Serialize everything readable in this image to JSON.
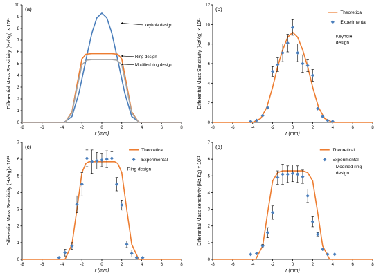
{
  "chart_data": [
    {
      "panel": "(a)",
      "type": "line",
      "ylabel": "Differential Mass Sensitivity (Hz/Kg) × 10¹¹",
      "xlabel": "r (mm)",
      "xlim": [
        -8,
        8
      ],
      "ylim": [
        0,
        10
      ],
      "xticks": [
        -8,
        -6,
        -4,
        -2,
        0,
        2,
        4,
        6,
        8
      ],
      "yticks": [
        0,
        1,
        2,
        3,
        4,
        5,
        6,
        7,
        8,
        9,
        10
      ],
      "grid": false,
      "series": [
        {
          "name": "keyhole design",
          "color": "#4a7ebb",
          "x": [
            -8,
            -3.8,
            -3,
            -2.3,
            -1.5,
            -1,
            -0.5,
            0,
            0.5,
            1,
            1.5,
            2.3,
            3,
            3.8,
            8
          ],
          "y": [
            0,
            0,
            0.5,
            2.5,
            5.7,
            7.6,
            8.9,
            9.3,
            8.9,
            7.6,
            5.7,
            2.5,
            0.5,
            0,
            0
          ]
        },
        {
          "name": "Ring design",
          "color": "#ed7d31",
          "x": [
            -8,
            -3.7,
            -3,
            -2.5,
            -2,
            -1.6,
            -1,
            0,
            1,
            1.6,
            2,
            2.5,
            3,
            3.7,
            8
          ],
          "y": [
            0,
            0,
            0.9,
            3.2,
            5.4,
            5.8,
            5.85,
            5.85,
            5.85,
            5.8,
            5.4,
            3.2,
            0.9,
            0,
            0
          ]
        },
        {
          "name": "Modified ring design",
          "color": "#a5a5a5",
          "x": [
            -8,
            -3.7,
            -3,
            -2.5,
            -2,
            -1.5,
            -1,
            0,
            1,
            1.5,
            2,
            2.5,
            3,
            3.7,
            8
          ],
          "y": [
            0,
            0,
            0.8,
            2.9,
            4.9,
            5.3,
            5.35,
            5.35,
            5.35,
            5.3,
            4.9,
            2.9,
            0.8,
            0,
            0
          ]
        }
      ],
      "annotations": [
        "keyhole design",
        "Ring design",
        "Modified ring design"
      ]
    },
    {
      "panel": "(b)",
      "type": "scatter",
      "ylabel": "Differential Mass Sensitivity (Hz/Kg) × 10¹¹",
      "xlabel": "r (mm)",
      "xlim": [
        -8,
        8
      ],
      "ylim": [
        0,
        12
      ],
      "xticks": [
        -8,
        -6,
        -4,
        -2,
        0,
        2,
        4,
        6,
        8
      ],
      "yticks": [
        0,
        2,
        4,
        6,
        8,
        10,
        12
      ],
      "legend": "top-right",
      "note": [
        "Keyhole",
        "design"
      ],
      "series": [
        {
          "name": "Theoretical",
          "color": "#ed7d31",
          "x": [
            -8,
            -4,
            -3.2,
            -2.6,
            -2,
            -1.5,
            -1,
            -0.5,
            0,
            0.5,
            1,
            1.5,
            2,
            2.6,
            3.2,
            4,
            8
          ],
          "y": [
            0,
            0,
            0.4,
            1.5,
            3.6,
            5.7,
            7.4,
            8.7,
            9.2,
            8.7,
            7.4,
            5.7,
            3.6,
            1.5,
            0.4,
            0,
            0
          ]
        },
        {
          "name": "Experimental",
          "color": "#4a7ebb",
          "x": [
            -4.2,
            -3.6,
            -3,
            -2.5,
            -2,
            -1.5,
            -1,
            -0.5,
            0,
            0.5,
            1,
            1.5,
            2,
            2.5,
            3,
            3.5,
            4
          ],
          "y": [
            0.1,
            0.2,
            0.7,
            1.5,
            5.2,
            5.9,
            7.1,
            8.1,
            9.7,
            7.1,
            6.0,
            5.8,
            4.8,
            1.4,
            0.6,
            0.2,
            0.1
          ],
          "err": [
            0,
            0,
            0,
            0,
            0.5,
            0.7,
            0.9,
            0.9,
            0.8,
            0.9,
            0.9,
            0.6,
            0.6,
            0,
            0,
            0,
            0
          ]
        }
      ]
    },
    {
      "panel": "(c)",
      "type": "scatter",
      "ylabel": "Differential Mass Sensitivity (Hz/Kg)× 10¹¹",
      "xlabel": "r (mm)",
      "xlim": [
        -8,
        8
      ],
      "ylim": [
        0,
        7
      ],
      "xticks": [
        -8,
        -6,
        -4,
        -2,
        0,
        2,
        4,
        6,
        8
      ],
      "yticks": [
        0,
        1,
        2,
        3,
        4,
        5,
        6,
        7
      ],
      "legend": "top-right",
      "note": [
        "Ring design"
      ],
      "series": [
        {
          "name": "Theoretical",
          "color": "#ed7d31",
          "x": [
            -8,
            -3.7,
            -3,
            -2.5,
            -2,
            -1.6,
            -1.3,
            0,
            1.3,
            1.6,
            2,
            2.5,
            3,
            3.7,
            8
          ],
          "y": [
            0,
            0,
            0.9,
            3.0,
            5.2,
            5.75,
            5.85,
            5.85,
            5.85,
            5.75,
            5.2,
            3.0,
            0.9,
            0,
            0
          ]
        },
        {
          "name": "Experimental",
          "color": "#4a7ebb",
          "x": [
            -4.3,
            -3.7,
            -3,
            -2.5,
            -2,
            -1.5,
            -1,
            -0.5,
            0,
            0.5,
            1,
            1.5,
            2,
            2.5,
            3,
            3.5,
            4.1
          ],
          "y": [
            0.1,
            0.4,
            0.8,
            3.3,
            4.5,
            6.05,
            5.85,
            5.9,
            5.95,
            6.0,
            6.05,
            4.5,
            3.25,
            0.9,
            0.35,
            0.1,
            0.1
          ],
          "err": [
            0,
            0.2,
            0.2,
            0.5,
            0.7,
            0.5,
            0.7,
            0.5,
            0.4,
            0.5,
            0.4,
            0.4,
            0.3,
            0.2,
            0.2,
            0,
            0
          ]
        }
      ]
    },
    {
      "panel": "(d)",
      "type": "scatter",
      "ylabel": "Differential Mass sensitivity (Hz/Kg) × 10¹¹",
      "xlabel": "r (mm)",
      "xlim": [
        -8,
        8
      ],
      "ylim": [
        0,
        7
      ],
      "xticks": [
        -8,
        -6,
        -4,
        -2,
        0,
        2,
        4,
        6,
        8
      ],
      "yticks": [
        0,
        1,
        2,
        3,
        4,
        5,
        6,
        7
      ],
      "legend": "top-right",
      "note": [
        "Modified ring",
        "design"
      ],
      "series": [
        {
          "name": "Theoretical",
          "color": "#ed7d31",
          "x": [
            -8,
            -3.7,
            -3,
            -2.5,
            -2,
            -1.5,
            -1,
            0,
            1,
            1.5,
            2,
            2.5,
            3,
            3.7,
            8
          ],
          "y": [
            0,
            0,
            0.8,
            2.8,
            4.7,
            5.2,
            5.3,
            5.3,
            5.3,
            5.2,
            4.7,
            2.8,
            0.8,
            0,
            0
          ]
        },
        {
          "name": "Experimental",
          "color": "#4a7ebb",
          "x": [
            -4.2,
            -3.6,
            -3,
            -2.5,
            -2,
            -1.5,
            -1,
            -0.5,
            0,
            0.5,
            1,
            1.5,
            2,
            2.5,
            3,
            3.5,
            4.2
          ],
          "y": [
            0.3,
            0.35,
            0.8,
            1.6,
            2.8,
            4.9,
            5.1,
            5.1,
            5.15,
            5.1,
            4.95,
            3.8,
            2.25,
            1.5,
            0.6,
            0.3,
            0.3
          ],
          "err": [
            0,
            0,
            0.1,
            0.3,
            0.4,
            0.4,
            0.6,
            0.5,
            0.5,
            0.5,
            0.4,
            0.4,
            0.3,
            0.1,
            0,
            0,
            0
          ]
        }
      ]
    }
  ]
}
